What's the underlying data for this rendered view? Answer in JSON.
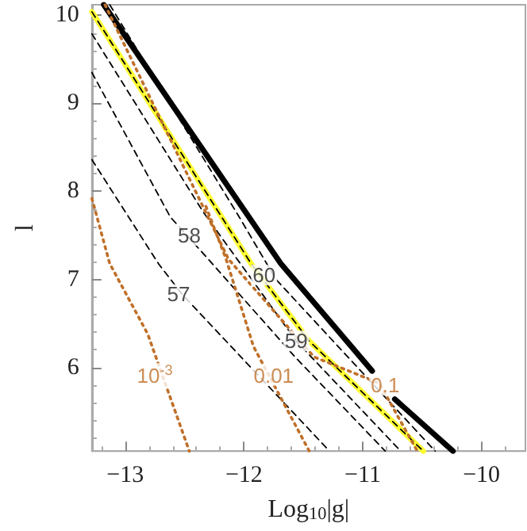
{
  "chart_data": {
    "type": "line",
    "xlabel": "Log$_{10}$|g|",
    "ylabel": "l",
    "xlim": [
      -13.28,
      -9.63
    ],
    "ylim": [
      5.05,
      10.12
    ],
    "xticks": [
      {
        "value": -13,
        "label": "−13"
      },
      {
        "value": -12,
        "label": "−12"
      },
      {
        "value": -11,
        "label": "−11"
      },
      {
        "value": -10,
        "label": "−10"
      }
    ],
    "yticks": [
      6,
      7,
      8,
      9,
      10
    ],
    "grid": false,
    "marker": "none",
    "series": [
      {
        "color": "#000000",
        "line_style": "solid",
        "x": [
          -13.18,
          -11.69,
          -10.92,
          -10.85,
          -10.73,
          -10.24
        ],
        "values": [
          10.12,
          7.18,
          5.96,
          null,
          5.64,
          5.05
        ]
      },
      {
        "color": "#ffff33",
        "line_style": "solid",
        "x": [
          -13.28,
          -11.94,
          -11.45,
          -10.49
        ],
        "values": [
          10.04,
          7.18,
          6.3,
          5.05
        ]
      },
      {
        "color": "#000000",
        "line_style": "dashed",
        "x": [
          -13.28,
          -11.94,
          -11.45,
          -10.49
        ],
        "values": [
          10.04,
          7.18,
          6.3,
          5.05
        ]
      },
      {
        "color": "#000000",
        "line_style": "dashed",
        "x": [
          -13.13,
          -12.04,
          -11.73,
          -10.39
        ],
        "values": [
          10.12,
          7.71,
          7.0,
          5.05
        ]
      },
      {
        "color": "#000000",
        "line_style": "dashed",
        "x": [
          -13.28,
          -12.34,
          -11.56,
          -10.68
        ],
        "values": [
          9.79,
          7.76,
          6.3,
          5.05
        ]
      },
      {
        "color": "#000000",
        "line_style": "dashed",
        "x": [
          -13.28,
          -12.62,
          -12.3,
          -11.57,
          -10.81
        ],
        "values": [
          9.35,
          7.71,
          7.23,
          6.12,
          5.05
        ]
      },
      {
        "color": "#000000",
        "line_style": "dashed",
        "x": [
          -13.28,
          -12.72,
          -12.52,
          -11.28
        ],
        "values": [
          8.36,
          7.18,
          6.83,
          5.05
        ]
      },
      {
        "color": "#c0702a",
        "line_style": "dotted",
        "x": [
          -13.17,
          -12.13,
          -11.41,
          -10.86,
          -10.54
        ],
        "values": [
          10.12,
          7.23,
          6.12,
          5.82,
          5.05
        ]
      },
      {
        "color": "#c0702a",
        "line_style": "dotted",
        "x": [
          -12.32,
          -12.15,
          -11.92,
          -11.45
        ],
        "values": [
          7.83,
          7.23,
          6.24,
          5.05
        ]
      },
      {
        "color": "#c0702a",
        "line_style": "dotted",
        "x": [
          -13.28,
          -13.13,
          -12.81,
          -12.46
        ],
        "values": [
          7.92,
          7.18,
          6.38,
          5.05
        ]
      }
    ],
    "annotations": [
      {
        "text": "60",
        "x": -11.83,
        "y": 7.05
      },
      {
        "text": "59",
        "x": -11.56,
        "y": 6.3
      },
      {
        "text": "58",
        "x": -12.46,
        "y": 7.5
      },
      {
        "text": "57",
        "x": -12.55,
        "y": 6.83
      },
      {
        "text": "10$^{-3}$",
        "x": -12.75,
        "y": 5.91
      },
      {
        "text": "0.01",
        "x": -11.75,
        "y": 5.91
      },
      {
        "text": "0.1",
        "x": -10.81,
        "y": 5.8
      }
    ]
  }
}
